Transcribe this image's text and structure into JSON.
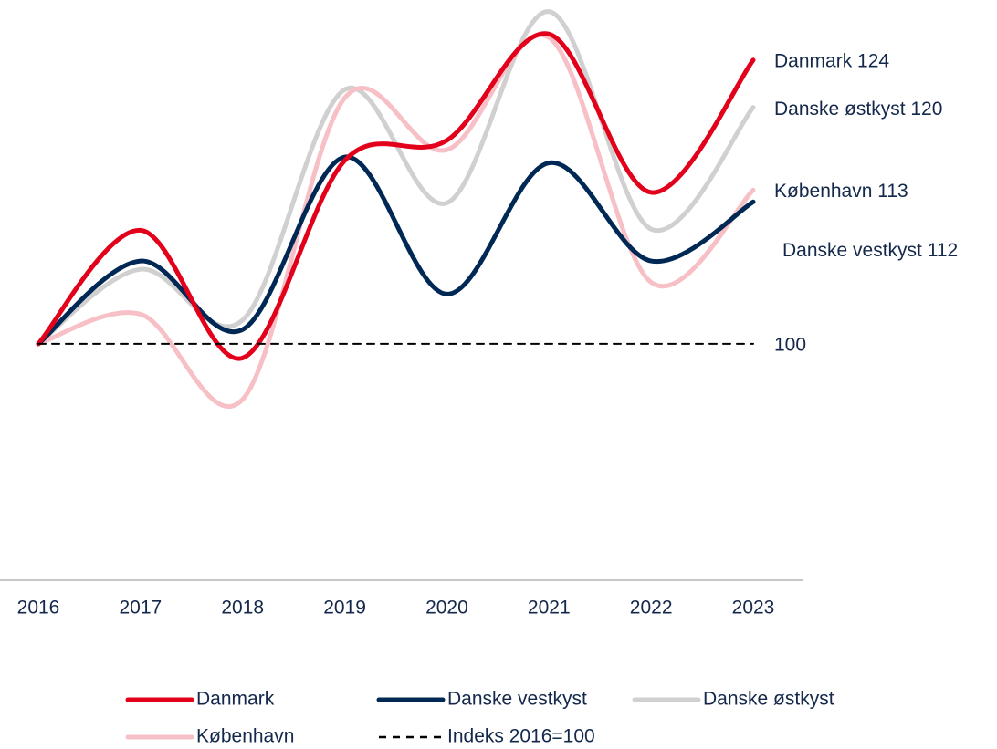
{
  "chart_data": {
    "type": "line",
    "categories": [
      "2016",
      "2017",
      "2018",
      "2019",
      "2020",
      "2021",
      "2022",
      "2023"
    ],
    "series": [
      {
        "name": "Danmark",
        "color": "#e2001a",
        "values": [
          100,
          109.6,
          98.8,
          115.5,
          117.2,
          126.2,
          112.8,
          124
        ],
        "end_label": "Danmark 124"
      },
      {
        "name": "Danske vestkyst",
        "color": "#002855",
        "values": [
          100,
          107.0,
          101.2,
          115.8,
          104.2,
          115.3,
          107.0,
          112
        ],
        "end_label": "Danske vestkyst 112"
      },
      {
        "name": "Danske østkyst",
        "color": "#d0d0d0",
        "values": [
          100,
          106.3,
          102.0,
          121.5,
          111.9,
          128.1,
          109.7,
          120
        ],
        "end_label": "Danske østkyst 120"
      },
      {
        "name": "København",
        "color": "#f7c0c6",
        "values": [
          100,
          102.5,
          95.3,
          120.8,
          116.4,
          125.9,
          105.2,
          113
        ],
        "end_label": "København 113"
      },
      {
        "name": "Indeks 2016=100",
        "color": "#000000",
        "dashed": true,
        "values": [
          100,
          100,
          100,
          100,
          100,
          100,
          100,
          100
        ],
        "end_label": "100"
      }
    ],
    "ylim": [
      80,
      129
    ]
  }
}
